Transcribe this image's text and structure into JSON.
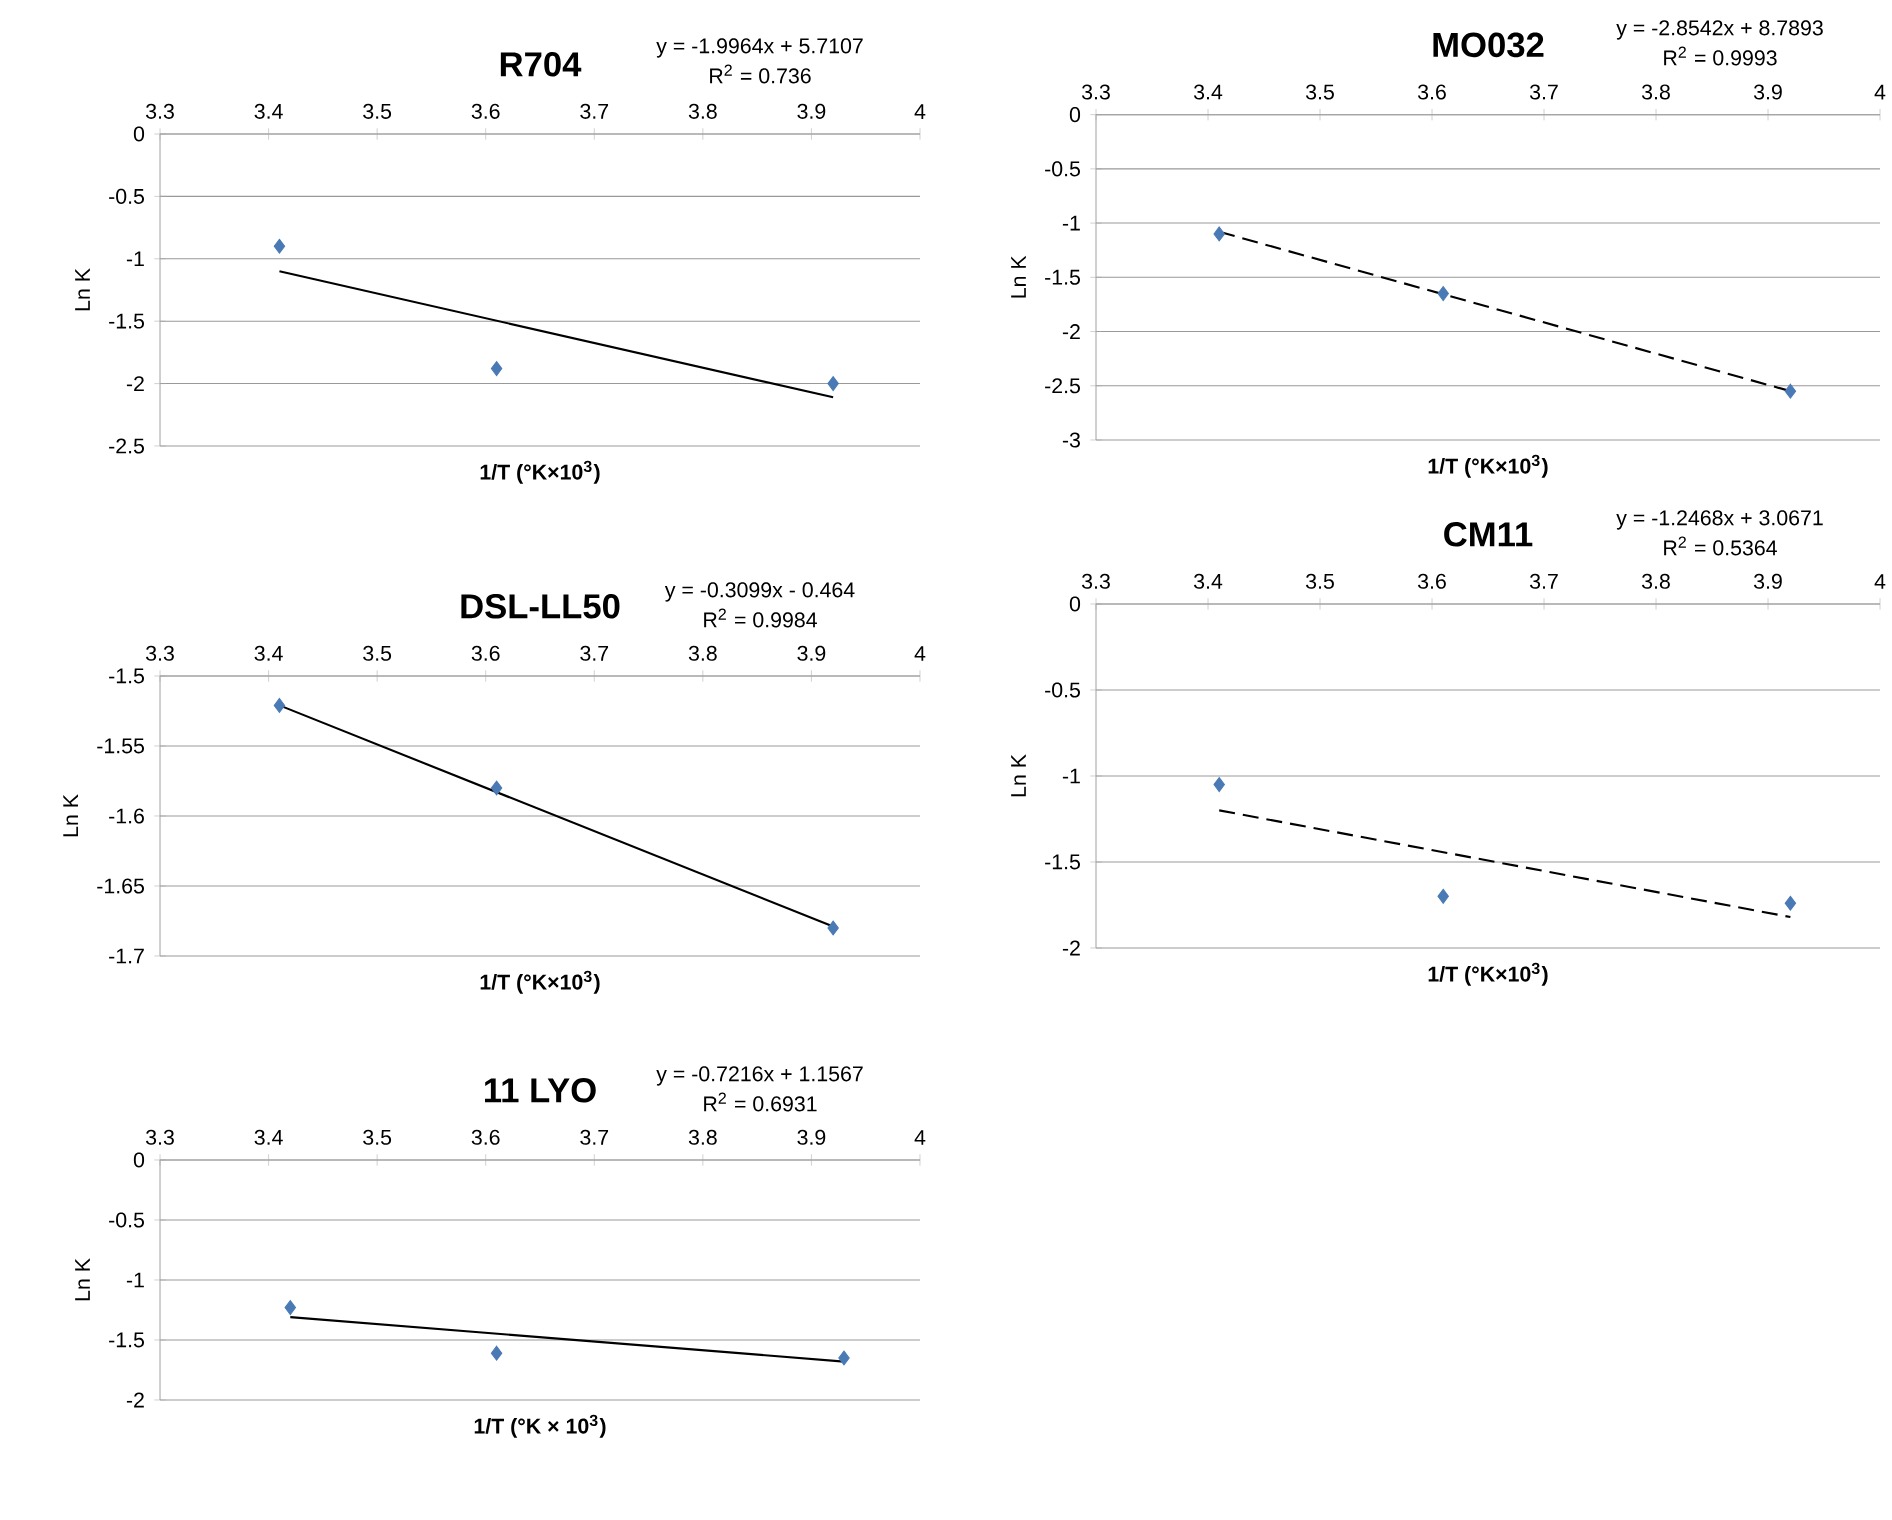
{
  "chart_data": [
    {
      "type": "scatter",
      "title": "R704",
      "xlabel": "1/T (°K×10$^{3}$)",
      "ylabel": "Ln K",
      "annotations": [
        "y = -1.9964x + 5.7107",
        "R$^{2}$ = 0.736"
      ],
      "xlim": [
        3.3,
        4
      ],
      "xticks": [
        3.3,
        3.4,
        3.5,
        3.6,
        3.7,
        3.8,
        3.9,
        4
      ],
      "ylim": [
        -2.5,
        0
      ],
      "yticks": [
        -2.5,
        -2,
        -1.5,
        -1,
        -0.5,
        0
      ],
      "grid": "y",
      "marker": "diamond",
      "series": [
        {
          "color": "#4a7ab5",
          "x": [
            3.41,
            3.61,
            3.92
          ],
          "values": [
            -0.9,
            -1.88,
            -2.0
          ]
        },
        {
          "type": "line",
          "color": "#000000",
          "marker": "none",
          "line_style": "solid",
          "x": [
            3.41,
            3.92
          ],
          "values": [
            -1.1,
            -2.11
          ]
        }
      ]
    },
    {
      "type": "scatter",
      "title": "MO032",
      "xlabel": "1/T (°K×10$^{3}$)",
      "ylabel": "Ln K",
      "annotations": [
        "y = -2.8542x + 8.7893",
        "R$^{2}$ = 0.9993"
      ],
      "xlim": [
        3.3,
        4
      ],
      "xticks": [
        3.3,
        3.4,
        3.5,
        3.6,
        3.7,
        3.8,
        3.9,
        4
      ],
      "ylim": [
        -3,
        0
      ],
      "yticks": [
        -3,
        -2.5,
        -2,
        -1.5,
        -1,
        -0.5,
        0
      ],
      "grid": "y",
      "marker": "diamond",
      "series": [
        {
          "color": "#4a7ab5",
          "x": [
            3.41,
            3.61,
            3.92
          ],
          "values": [
            -1.1,
            -1.65,
            -2.55
          ]
        },
        {
          "type": "line",
          "color": "#000000",
          "marker": "none",
          "line_style": "dashed",
          "x": [
            3.41,
            3.92
          ],
          "values": [
            -1.08,
            -2.55
          ]
        }
      ]
    },
    {
      "type": "scatter",
      "title": "DSL-LL50",
      "xlabel": "1/T (°K×10$^{3}$)",
      "ylabel": "Ln K",
      "annotations": [
        "y = -0.3099x - 0.464",
        "R$^{2}$ = 0.9984"
      ],
      "xlim": [
        3.3,
        4
      ],
      "xticks": [
        3.3,
        3.4,
        3.5,
        3.6,
        3.7,
        3.8,
        3.9,
        4
      ],
      "ylim": [
        -1.7,
        -1.5
      ],
      "yticks": [
        -1.7,
        -1.65,
        -1.6,
        -1.55,
        -1.5
      ],
      "grid": "y",
      "marker": "diamond",
      "series": [
        {
          "color": "#4a7ab5",
          "x": [
            3.41,
            3.61,
            3.92
          ],
          "values": [
            -1.521,
            -1.58,
            -1.68
          ]
        },
        {
          "type": "line",
          "color": "#000000",
          "marker": "none",
          "line_style": "solid",
          "x": [
            3.41,
            3.92
          ],
          "values": [
            -1.521,
            -1.679
          ]
        }
      ]
    },
    {
      "type": "scatter",
      "title": "CM11",
      "xlabel": "1/T (°K×10$^{3}$)",
      "ylabel": "Ln K",
      "annotations": [
        "y = -1.2468x + 3.0671",
        "R$^{2}$ = 0.5364"
      ],
      "xlim": [
        3.3,
        4
      ],
      "xticks": [
        3.3,
        3.4,
        3.5,
        3.6,
        3.7,
        3.8,
        3.9,
        4
      ],
      "ylim": [
        -2,
        0
      ],
      "yticks": [
        -2,
        -1.5,
        -1,
        -0.5,
        0
      ],
      "grid": "y",
      "marker": "diamond",
      "series": [
        {
          "color": "#4a7ab5",
          "x": [
            3.41,
            3.61,
            3.92
          ],
          "values": [
            -1.05,
            -1.7,
            -1.74
          ]
        },
        {
          "type": "line",
          "color": "#000000",
          "marker": "none",
          "line_style": "dashed",
          "x": [
            3.41,
            3.92
          ],
          "values": [
            -1.2,
            -1.82
          ]
        }
      ]
    },
    {
      "type": "scatter",
      "title": "11 LYO",
      "xlabel": "1/T (°K × 10$^{3}$)",
      "ylabel": "Ln K",
      "annotations": [
        "y = -0.7216x + 1.1567",
        "R$^{2}$ = 0.6931"
      ],
      "xlim": [
        3.3,
        4
      ],
      "xticks": [
        3.3,
        3.4,
        3.5,
        3.6,
        3.7,
        3.8,
        3.9,
        4
      ],
      "ylim": [
        -2,
        0
      ],
      "yticks": [
        -2,
        -1.5,
        -1,
        -0.5,
        0
      ],
      "grid": "y",
      "marker": "diamond",
      "series": [
        {
          "color": "#4a7ab5",
          "x": [
            3.42,
            3.61,
            3.93
          ],
          "values": [
            -1.23,
            -1.61,
            -1.65
          ]
        },
        {
          "type": "line",
          "color": "#000000",
          "marker": "none",
          "line_style": "solid",
          "x": [
            3.42,
            3.93
          ],
          "values": [
            -1.31,
            -1.68
          ]
        }
      ]
    }
  ]
}
